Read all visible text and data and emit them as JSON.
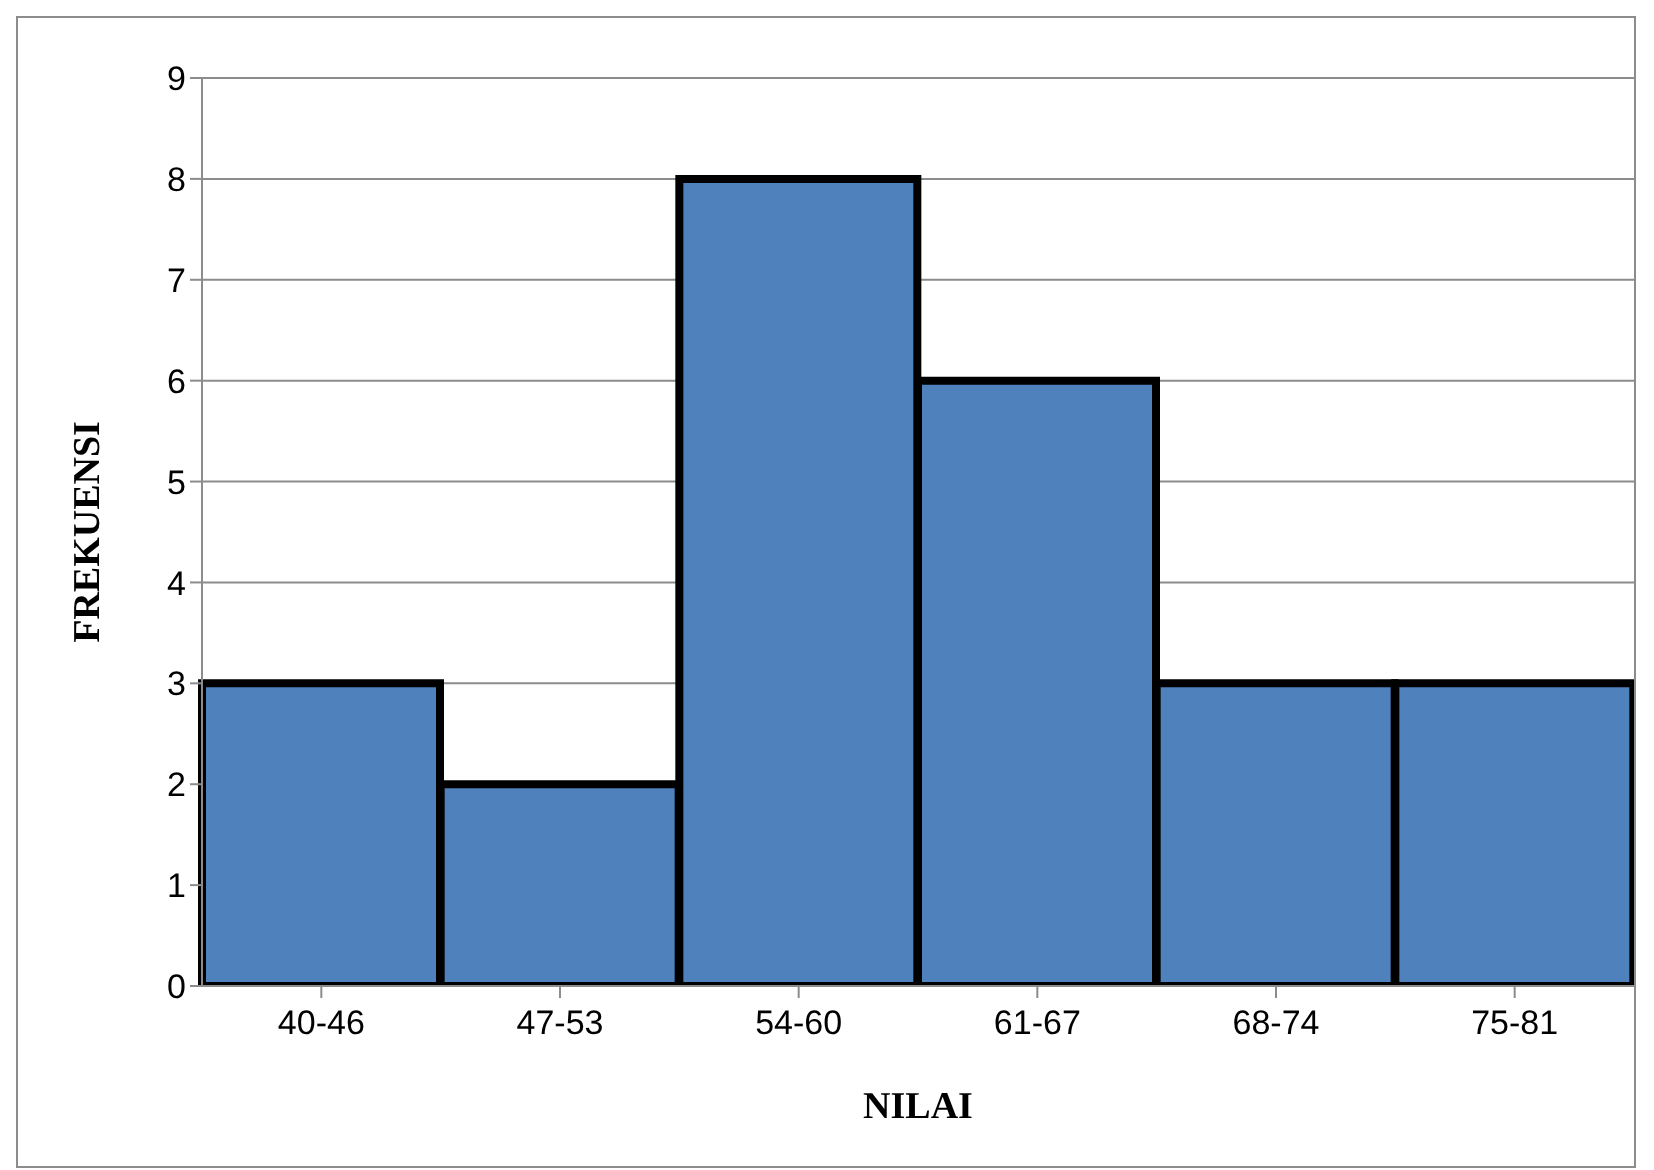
{
  "chart_data": {
    "type": "bar",
    "xlabel": "NILAI",
    "ylabel": "FREKUENSI",
    "categories": [
      "40-46",
      "47-53",
      "54-60",
      "61-67",
      "68-74",
      "75-81"
    ],
    "values": [
      3,
      2,
      8,
      6,
      3,
      3
    ],
    "color": "#4f81bd",
    "ylim": [
      0,
      9
    ],
    "yticks": [
      0,
      1,
      2,
      3,
      4,
      5,
      6,
      7,
      8,
      9
    ],
    "grid": "y"
  }
}
